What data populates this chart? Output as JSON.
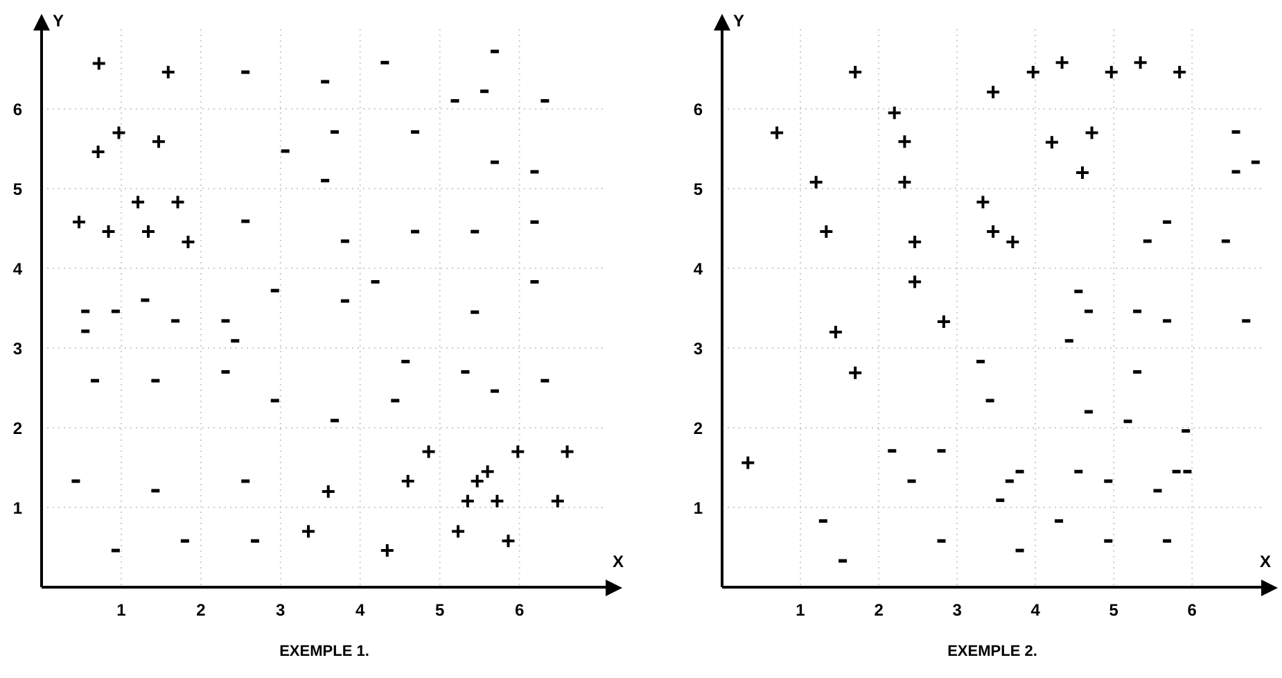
{
  "chart_data": [
    {
      "type": "scatter",
      "title": "EXEMPLE 1.",
      "xlabel": "X",
      "ylabel": "Y",
      "xlim": [
        0,
        7.1
      ],
      "ylim": [
        0,
        7
      ],
      "xticks": [
        1,
        2,
        3,
        4,
        5,
        6
      ],
      "yticks": [
        1,
        2,
        3,
        4,
        5,
        6
      ],
      "grid": true,
      "series": [
        {
          "color": "#000000",
          "marker": "cross",
          "x": [
            0.72,
            1.59,
            0.97,
            0.71,
            1.47,
            1.21,
            1.71,
            0.47,
            0.84,
            1.34,
            1.84,
            4.86,
            5.98,
            6.6,
            4.6,
            5.6,
            5.47,
            3.6,
            5.35,
            5.72,
            6.48,
            3.35,
            5.23,
            5.86,
            4.34
          ],
          "values": [
            6.57,
            6.46,
            5.7,
            5.46,
            5.59,
            4.83,
            4.83,
            4.58,
            4.46,
            4.46,
            4.33,
            1.7,
            1.7,
            1.7,
            1.33,
            1.45,
            1.33,
            1.2,
            1.08,
            1.08,
            1.08,
            0.7,
            0.7,
            0.58,
            0.46
          ]
        },
        {
          "color": "#000000",
          "x": [
            2.56,
            3.06,
            2.56,
            2.93,
            1.3,
            0.55,
            0.93,
            1.68,
            2.31,
            0.55,
            5.69,
            4.31,
            3.56,
            5.56,
            5.19,
            6.32,
            3.68,
            4.69,
            5.69,
            6.19,
            3.56,
            6.19,
            4.69,
            5.44,
            3.81,
            4.19,
            6.19,
            3.81,
            5.44,
            2.43,
            4.57,
            5.32,
            2.31,
            0.67,
            1.43,
            6.32,
            5.69,
            2.93,
            4.44,
            3.68,
            0.43,
            2.56,
            1.43,
            1.8,
            2.68,
            0.93
          ],
          "values": [
            6.46,
            5.47,
            4.59,
            3.72,
            3.6,
            3.46,
            3.46,
            3.34,
            3.34,
            3.21,
            6.72,
            6.58,
            6.34,
            6.22,
            6.1,
            6.1,
            5.71,
            5.71,
            5.33,
            5.21,
            5.1,
            4.58,
            4.46,
            4.46,
            4.34,
            3.83,
            3.83,
            3.59,
            3.45,
            3.09,
            2.83,
            2.7,
            2.7,
            2.59,
            2.59,
            2.59,
            2.46,
            2.34,
            2.34,
            2.09,
            1.33,
            1.33,
            1.21,
            0.58,
            0.58,
            0.46
          ]
        }
      ]
    },
    {
      "type": "scatter",
      "title": "EXEMPLE 2.",
      "xlabel": "X",
      "ylabel": "Y",
      "xlim": [
        0,
        6.9
      ],
      "ylim": [
        0,
        7
      ],
      "xticks": [
        1,
        2,
        3,
        4,
        5,
        6
      ],
      "yticks": [
        1,
        2,
        3,
        4,
        5,
        6
      ],
      "grid": true,
      "series": [
        {
          "color": "#000000",
          "marker": "cross",
          "x": [
            1.7,
            2.2,
            0.7,
            2.33,
            1.2,
            2.33,
            1.33,
            2.46,
            2.46,
            2.83,
            3.46,
            3.97,
            4.34,
            4.97,
            5.34,
            5.84,
            4.21,
            4.72,
            4.6,
            3.33,
            3.46,
            3.71,
            1.45,
            1.7,
            0.33
          ],
          "values": [
            6.46,
            5.95,
            5.7,
            5.59,
            5.08,
            5.08,
            4.46,
            4.33,
            3.83,
            3.33,
            6.21,
            6.46,
            6.58,
            6.46,
            6.58,
            6.46,
            5.58,
            5.7,
            5.2,
            4.83,
            4.46,
            4.33,
            3.2,
            2.69,
            1.56
          ]
        },
        {
          "color": "#000000",
          "x": [
            6.56,
            6.81,
            6.56,
            5.68,
            5.43,
            6.43,
            4.55,
            4.68,
            5.3,
            5.68,
            6.69,
            4.43,
            3.3,
            5.3,
            3.42,
            4.68,
            5.18,
            5.92,
            2.17,
            2.8,
            2.42,
            3.8,
            3.67,
            4.55,
            4.93,
            5.8,
            5.94,
            5.56,
            3.55,
            1.29,
            4.3,
            2.8,
            4.93,
            5.68,
            3.8,
            1.54
          ],
          "values": [
            5.71,
            5.33,
            5.21,
            4.58,
            4.34,
            4.34,
            3.71,
            3.46,
            3.46,
            3.34,
            3.34,
            3.09,
            2.83,
            2.7,
            2.34,
            2.2,
            2.08,
            1.96,
            1.71,
            1.71,
            1.33,
            1.45,
            1.33,
            1.45,
            1.33,
            1.45,
            1.45,
            1.21,
            1.09,
            0.83,
            0.83,
            0.58,
            0.58,
            0.58,
            0.46,
            0.33
          ]
        }
      ]
    }
  ]
}
